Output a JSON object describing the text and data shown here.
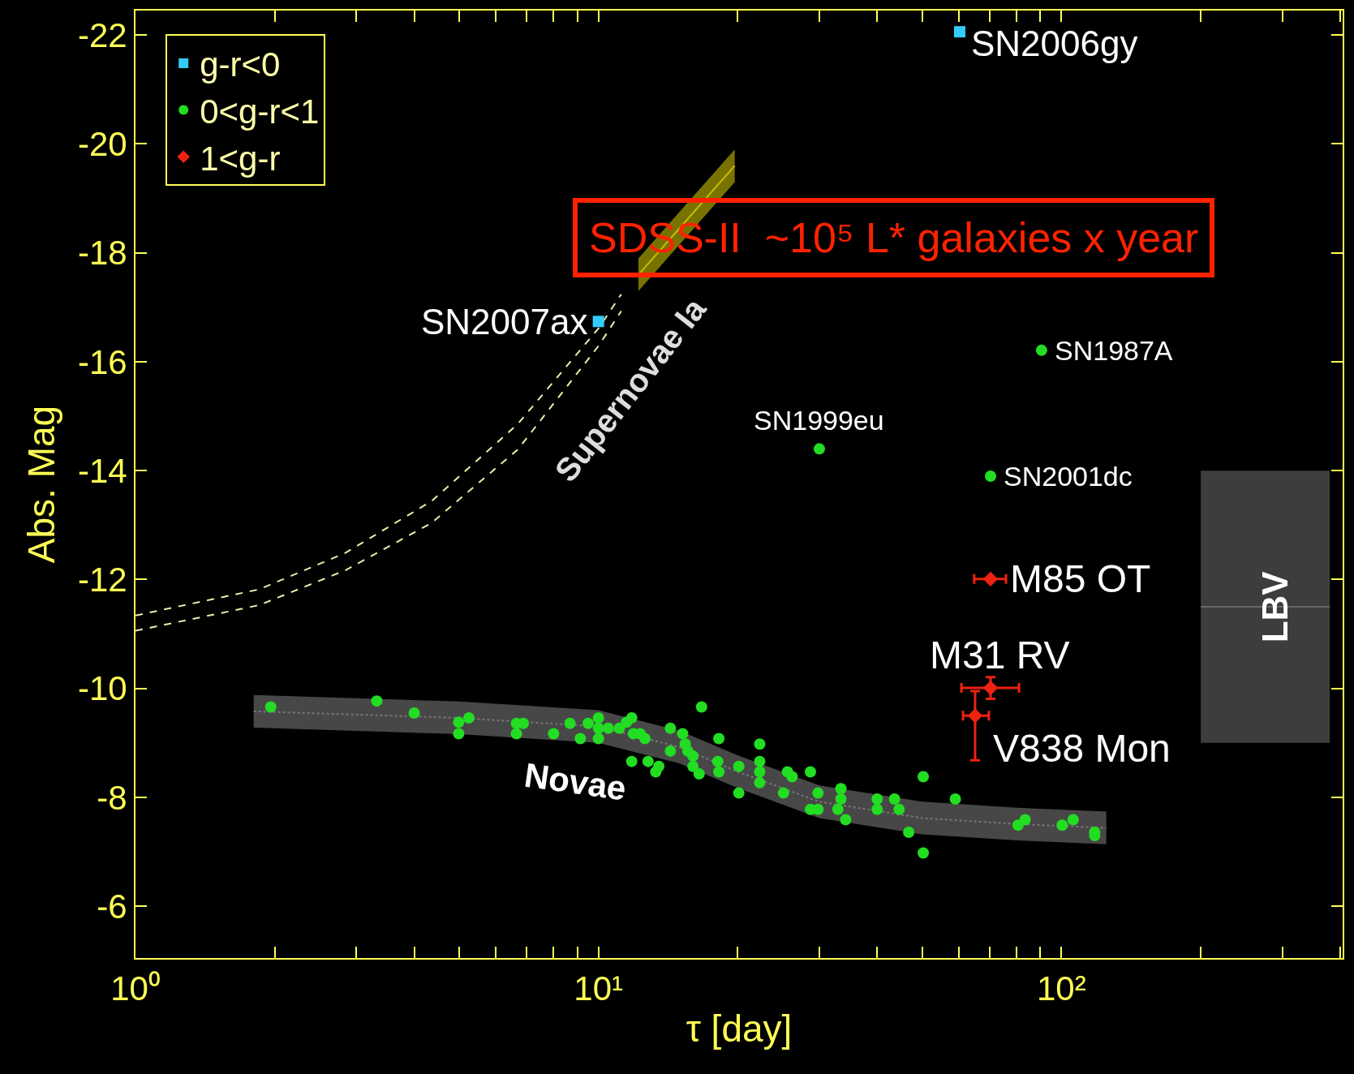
{
  "chart_data": {
    "type": "scatter",
    "xlabel": "τ [day]",
    "ylabel": "Abs. Mag",
    "log": "x",
    "grid": false,
    "legend": "top left",
    "xlim": [
      1,
      405
    ],
    "ylim": [
      -5.05,
      -22.45
    ],
    "xticks": [
      {
        "value": 1,
        "label": "10⁰"
      },
      {
        "value": 2,
        "label": null
      },
      {
        "value": 3,
        "label": null
      },
      {
        "value": 4,
        "label": null
      },
      {
        "value": 5,
        "label": null
      },
      {
        "value": 6,
        "label": null
      },
      {
        "value": 7,
        "label": null
      },
      {
        "value": 8,
        "label": null
      },
      {
        "value": 9,
        "label": null
      },
      {
        "value": 10,
        "label": "10¹"
      },
      {
        "value": 20,
        "label": null
      },
      {
        "value": 30,
        "label": null
      },
      {
        "value": 40,
        "label": null
      },
      {
        "value": 50,
        "label": null
      },
      {
        "value": 60,
        "label": null
      },
      {
        "value": 70,
        "label": null
      },
      {
        "value": 80,
        "label": null
      },
      {
        "value": 90,
        "label": null
      },
      {
        "value": 100,
        "label": "10²"
      },
      {
        "value": 200,
        "label": null
      },
      {
        "value": 300,
        "label": null
      },
      {
        "value": 400,
        "label": null
      }
    ],
    "yticks": [
      -22,
      -20,
      -18,
      -16,
      -14,
      -12,
      -10,
      -8,
      -6
    ],
    "series": [
      {
        "name": "g-r<0",
        "color": "#33ccff",
        "marker": "square",
        "x": [
          60.3,
          10
        ],
        "values": [
          -22.06,
          -16.74
        ]
      },
      {
        "name": "0<g-r<1",
        "color": "#22dd22",
        "marker": "circle",
        "x": [
          1.96,
          3.32,
          4.0,
          4.99,
          4.99,
          5.25,
          6.65,
          6.65,
          6.88,
          8.0,
          8.68,
          9.14,
          9.5,
          10,
          10,
          10,
          10.5,
          11.1,
          11.5,
          11.8,
          11.9,
          12.3,
          12.6,
          11.8,
          12.8,
          13.3,
          13.5,
          14.3,
          14.3,
          15.2,
          15.4,
          15.6,
          16.0,
          16.0,
          16.5,
          16.7,
          18.1,
          18.2,
          18.2,
          20.1,
          20.1,
          22.3,
          22.3,
          22.3,
          22.3,
          25.1,
          25.6,
          26.2,
          28.7,
          28.7,
          29.8,
          29.8,
          32.9,
          33.4,
          33.4,
          34.2,
          40.0,
          40.0,
          43.6,
          44.6,
          46.8,
          50.3,
          50.3,
          59.0,
          80.6,
          83.5,
          100.4,
          106,
          118,
          118,
          90.6,
          30.0,
          70.3
        ],
        "values": [
          -9.66,
          -9.77,
          -9.55,
          -9.38,
          -9.17,
          -9.46,
          -9.36,
          -9.17,
          -9.36,
          -9.17,
          -9.36,
          -9.08,
          -9.36,
          -9.46,
          -9.27,
          -9.08,
          -9.27,
          -9.27,
          -9.38,
          -9.46,
          -9.17,
          -9.17,
          -9.08,
          -8.66,
          -8.66,
          -8.47,
          -8.57,
          -9.27,
          -8.85,
          -9.17,
          -8.98,
          -8.85,
          -8.76,
          -8.57,
          -8.43,
          -9.66,
          -8.66,
          -9.08,
          -8.47,
          -8.57,
          -8.08,
          -8.98,
          -8.66,
          -8.47,
          -8.27,
          -8.08,
          -8.47,
          -8.38,
          -8.47,
          -7.78,
          -7.78,
          -8.08,
          -7.78,
          -8.16,
          -7.97,
          -7.59,
          -7.78,
          -7.97,
          -7.97,
          -7.78,
          -7.36,
          -8.38,
          -6.98,
          -7.97,
          -7.49,
          -7.59,
          -7.49,
          -7.59,
          -7.36,
          -7.3,
          -16.21,
          -14.4,
          -13.9
        ]
      },
      {
        "name": "1<g-r",
        "color": "#ee2211",
        "marker": "diamond",
        "x": [
          70.3,
          70.3,
          65.1
        ],
        "values": [
          -12.01,
          -10.01,
          -9.5
        ],
        "errors": [
          null,
          0.2,
          [
            -9.95,
            -8.68
          ]
        ],
        "xerrors": [
          [
            64.8,
            75.9
          ],
          [
            60.8,
            81.0
          ],
          [
            61.3,
            69.7
          ]
        ]
      },
      {
        "type": "line",
        "color": "#eeeeaa",
        "line_style": "dashed",
        "x": [
          1,
          1.85,
          2.84,
          4.36,
          6.7,
          10,
          11.2
        ],
        "values": [
          -11.34,
          -11.82,
          -12.49,
          -13.44,
          -14.86,
          -16.61,
          -17.24
        ]
      },
      {
        "type": "line",
        "color": "#eeeeaa",
        "line_style": "dashed",
        "x": [
          1,
          1.85,
          2.84,
          4.36,
          6.7,
          10,
          11.2
        ],
        "values": [
          -11.06,
          -11.53,
          -12.17,
          -13.04,
          -14.39,
          -16.29,
          -16.93
        ]
      },
      {
        "type": "line",
        "color": "#777777",
        "line_style": "dotted",
        "x": [
          1.8,
          5,
          10,
          15,
          20,
          30,
          50,
          80,
          125
        ],
        "values": [
          -9.58,
          -9.46,
          -9.3,
          -8.92,
          -8.47,
          -7.92,
          -7.62,
          -7.51,
          -7.44
        ],
        "lower": [
          -9.28,
          -9.16,
          -9.0,
          -8.62,
          -8.17,
          -7.62,
          -7.32,
          -7.21,
          -7.14
        ],
        "upper": [
          -9.88,
          -9.76,
          -9.6,
          -9.22,
          -8.77,
          -8.22,
          -7.92,
          -7.81,
          -7.74
        ]
      },
      {
        "type": "line",
        "color": "#c8c000",
        "x": [
          12.2,
          19.7
        ],
        "values": [
          -17.6,
          -19.6
        ],
        "lower": [
          -17.3,
          -19.3
        ],
        "upper": [
          -17.9,
          -19.9
        ]
      },
      {
        "type": "line",
        "color": "#666666",
        "x": [
          200,
          380
        ],
        "values": [
          -11.5,
          -11.5
        ],
        "lower": [
          -9,
          -9
        ],
        "upper": [
          -14,
          -14
        ]
      }
    ],
    "annotations": [
      {
        "text": "SN2006gy",
        "x": 60.3,
        "y": -22.06
      },
      {
        "text": "SN2007ax",
        "x": 10,
        "y": -16.74
      },
      {
        "text": "SN1987A",
        "x": 90.6,
        "y": -16.21
      },
      {
        "text": "SN1999eu",
        "x": 30.0,
        "y": -14.4
      },
      {
        "text": "SN2001dc",
        "x": 70.3,
        "y": -13.9
      },
      {
        "text": "M85 OT",
        "x": 70.3,
        "y": -12.01
      },
      {
        "text": "M31 RV",
        "x": 70.3,
        "y": -10.01
      },
      {
        "text": "V838 Mon",
        "x": 65.1,
        "y": -9.5
      },
      "Novae",
      "Supernovae Ia",
      "LBV",
      "SDSS-II  ~10⁵ L* galaxies x year"
    ]
  }
}
